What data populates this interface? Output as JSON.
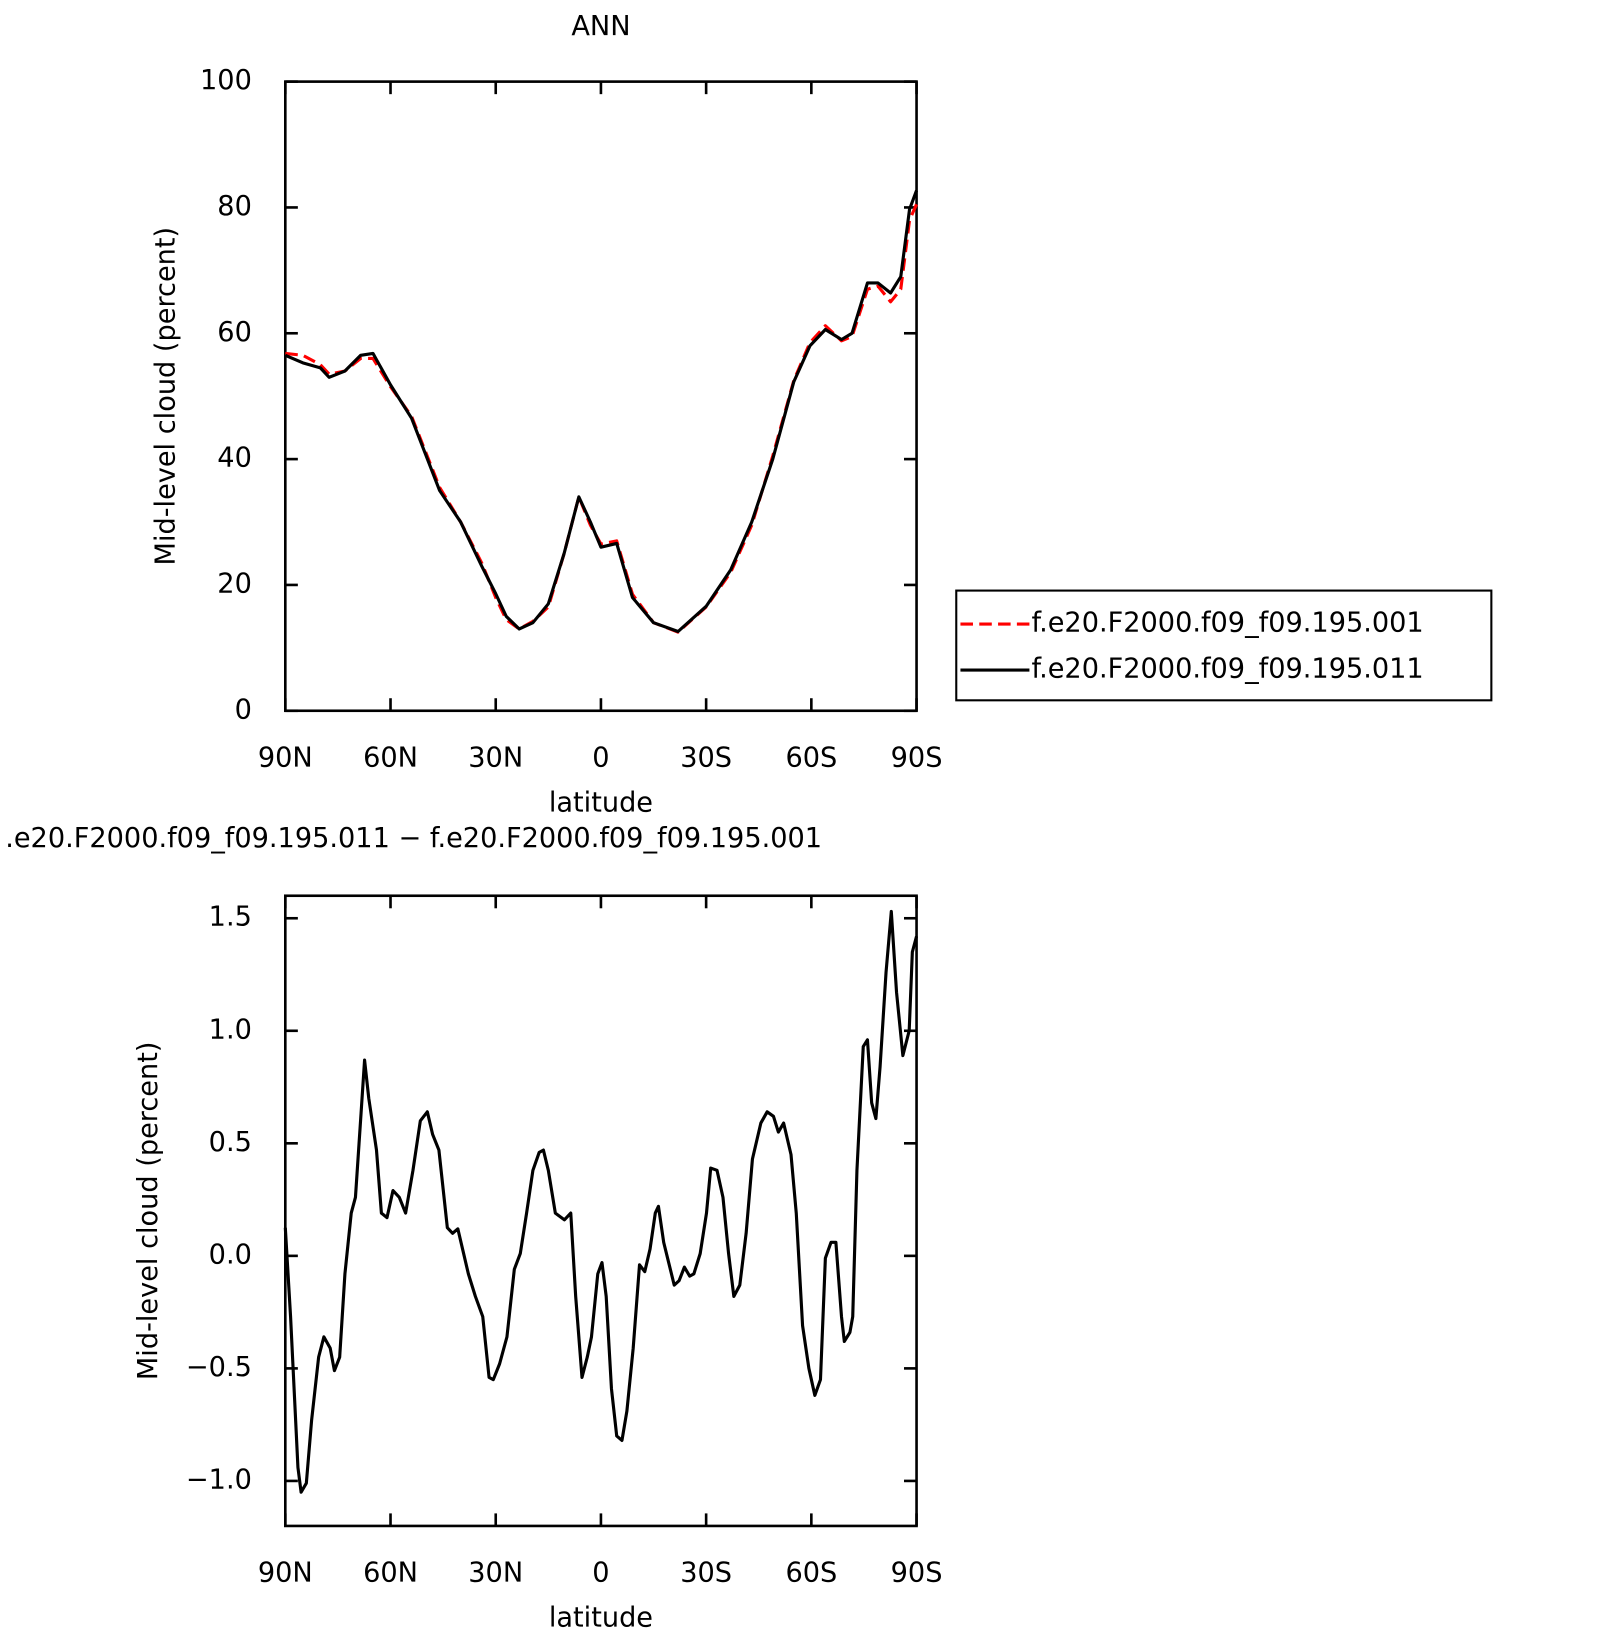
{
  "chart_data": [
    {
      "type": "line",
      "title": "ANN",
      "x_label": "latitude",
      "y_label": "Mid-level cloud (percent)",
      "xlim": [
        90,
        -90
      ],
      "xticks": [
        {
          "value": 90,
          "label": "90N"
        },
        {
          "value": 60,
          "label": "60N"
        },
        {
          "value": 30,
          "label": "30N"
        },
        0,
        {
          "value": -30,
          "label": "30S"
        },
        {
          "value": -60,
          "label": "60S"
        },
        {
          "value": -90,
          "label": "90S"
        }
      ],
      "ylim": [
        0,
        100
      ],
      "yticks": [
        0,
        20,
        40,
        60,
        80,
        100
      ],
      "x": [
        90,
        85,
        80,
        77.5,
        73,
        68.5,
        65,
        60,
        54,
        46,
        40,
        34,
        30,
        27,
        23.3,
        19.4,
        15,
        10.5,
        6.3,
        3,
        0,
        -4.5,
        -9,
        -15,
        -22,
        -30,
        -37,
        -43,
        -49,
        -55,
        -59.6,
        -64,
        -68.6,
        -71.6,
        -76,
        -79,
        -82.6,
        -85.5,
        -88,
        -90
      ],
      "legend": "right",
      "series": [
        {
          "name": "f.e20.F2000.f09_f09.195.001",
          "color": "#ff0000",
          "dashed": true,
          "values": [
            56.8,
            56.5,
            55,
            53.5,
            54,
            56,
            56,
            51.5,
            46.8,
            35.5,
            30,
            23.5,
            18,
            14.5,
            13,
            14.2,
            16.5,
            25,
            34,
            29.5,
            26.5,
            27,
            18.5,
            14,
            12.5,
            16.5,
            22,
            29.5,
            40.5,
            52.5,
            58.5,
            61.2,
            58.8,
            59.5,
            67,
            67.5,
            65,
            67,
            78,
            80.5
          ]
        },
        {
          "name": "f.e20.F2000.f09_f09.195.011",
          "color": "#000000",
          "dashed": false,
          "values": [
            56.5,
            55.3,
            54.5,
            53,
            54,
            56.5,
            56.8,
            51.8,
            46.5,
            35,
            30,
            23,
            18.6,
            15,
            13,
            14,
            17,
            25,
            34,
            30,
            26,
            26.6,
            18,
            14,
            12.6,
            16.6,
            22.4,
            30,
            40,
            52.3,
            58,
            60.6,
            59,
            60,
            68,
            68,
            66.4,
            69,
            79.7,
            82.7
          ]
        }
      ]
    },
    {
      "type": "line",
      "title": ".e20.F2000.f09_f09.195.011 − f.e20.F2000.f09_f09.195.001",
      "x_label": "latitude",
      "y_label": "Mid-level cloud (percent)",
      "xlim": [
        90,
        -90
      ],
      "xticks": [
        {
          "value": 90,
          "label": "90N"
        },
        {
          "value": 60,
          "label": "60N"
        },
        {
          "value": 30,
          "label": "30N"
        },
        0,
        {
          "value": -30,
          "label": "30S"
        },
        {
          "value": -60,
          "label": "60S"
        },
        {
          "value": -90,
          "label": "90S"
        }
      ],
      "ylim": [
        -1.2,
        1.6
      ],
      "yticks": [
        {
          "value": -1,
          "label": "−1.0"
        },
        {
          "value": -0.5,
          "label": "−0.5"
        },
        {
          "value": 0,
          "label": "0.0"
        },
        0.5,
        {
          "value": 1,
          "label": "1.0"
        },
        1.5
      ],
      "color": "#000000",
      "x": [
        90,
        88.5,
        86.4,
        85.5,
        84,
        82.5,
        80.5,
        79,
        77.2,
        76,
        74.5,
        73,
        71.2,
        70,
        68.5,
        67.4,
        66.2,
        64,
        62.6,
        61,
        59.3,
        57.5,
        55.7,
        53.6,
        51.5,
        49.5,
        48,
        46.2,
        43.8,
        42.3,
        40.8,
        39.3,
        37.8,
        35.8,
        33.7,
        31.9,
        30.7,
        28.9,
        26.8,
        24.7,
        23,
        21.2,
        19.4,
        17.6,
        16.4,
        15,
        13,
        10.4,
        8.6,
        7.2,
        5.4,
        3.9,
        2.7,
        0.9,
        -0.3,
        -1.5,
        -3,
        -4.5,
        -6,
        -7.4,
        -9.2,
        -11,
        -12.5,
        -14,
        -15.5,
        -16.4,
        -17.9,
        -20.9,
        -22.3,
        -23.8,
        -25.3,
        -26.5,
        -28.3,
        -30.1,
        -31.3,
        -33.1,
        -34.8,
        -36.4,
        -37.9,
        -39.6,
        -41.4,
        -43.2,
        -45.6,
        -47.4,
        -49.2,
        -50.6,
        -52.1,
        -54.2,
        -55.7,
        -57.5,
        -59.3,
        -61,
        -62.6,
        -64,
        -65.6,
        -67,
        -68.6,
        -69.4,
        -71,
        -71.8,
        -73,
        -74.8,
        -76,
        -77.2,
        -78.4,
        -79.6,
        -81.3,
        -82.8,
        -84.3,
        -86.1,
        -87.9,
        -88.8,
        -90
      ],
      "values": [
        0.125,
        -0.27,
        -0.94,
        -1.05,
        -1.01,
        -0.73,
        -0.45,
        -0.36,
        -0.41,
        -0.51,
        -0.45,
        -0.08,
        0.19,
        0.26,
        0.61,
        0.87,
        0.7,
        0.47,
        0.19,
        0.17,
        0.29,
        0.26,
        0.19,
        0.38,
        0.6,
        0.64,
        0.54,
        0.47,
        0.125,
        0.1,
        0.12,
        0.02,
        -0.08,
        -0.18,
        -0.27,
        -0.54,
        -0.55,
        -0.48,
        -0.36,
        -0.06,
        0.01,
        0.19,
        0.38,
        0.46,
        0.47,
        0.38,
        0.19,
        0.16,
        0.19,
        -0.18,
        -0.54,
        -0.45,
        -0.36,
        -0.08,
        -0.03,
        -0.18,
        -0.59,
        -0.8,
        -0.82,
        -0.69,
        -0.41,
        -0.04,
        -0.07,
        0.03,
        0.19,
        0.22,
        0.06,
        -0.13,
        -0.11,
        -0.05,
        -0.09,
        -0.08,
        0.01,
        0.19,
        0.39,
        0.38,
        0.26,
        0.01,
        -0.18,
        -0.13,
        0.1,
        0.43,
        0.59,
        0.64,
        0.62,
        0.55,
        0.59,
        0.45,
        0.19,
        -0.31,
        -0.5,
        -0.62,
        -0.55,
        -0.01,
        0.06,
        0.06,
        -0.27,
        -0.38,
        -0.34,
        -0.27,
        0.38,
        0.93,
        0.96,
        0.68,
        0.61,
        0.84,
        1.26,
        1.53,
        1.17,
        0.89,
        1,
        1.35,
        1.42
      ]
    }
  ]
}
